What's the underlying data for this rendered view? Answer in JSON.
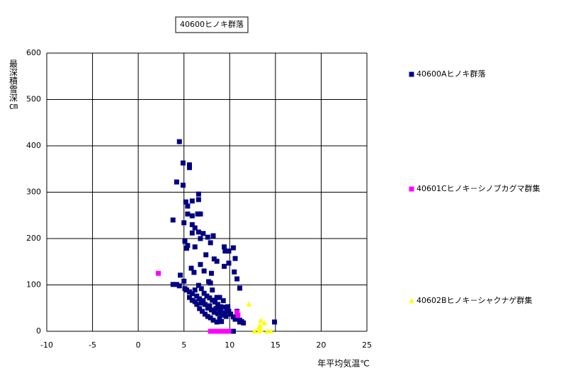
{
  "chart_data": {
    "type": "scatter",
    "title": "40600ヒノキ群落",
    "xlabel": "年平均気温℃",
    "ylabel": "最深積雪深㎝",
    "xlim": [
      -10,
      25
    ],
    "xticks": [
      -10,
      -5,
      0,
      5,
      10,
      15,
      20,
      25
    ],
    "ylim": [
      0,
      600
    ],
    "yticks": [
      0,
      100,
      200,
      300,
      400,
      500,
      600
    ],
    "grid": true,
    "legend": "right",
    "series": [
      {
        "name": "40600Aヒノキ群落",
        "color": "#000080",
        "marker": "square",
        "x": [
          4.5,
          4.9,
          5.6,
          5.6,
          4.2,
          4.9,
          6.6,
          6.6,
          5.2,
          5.9,
          5.4,
          3.8,
          5.4,
          5.9,
          6.5,
          6.8,
          5.0,
          5.9,
          6.2,
          5.9,
          6.6,
          7.1,
          7.6,
          8.2,
          5.1,
          6.8,
          5.4,
          7.9,
          5.3,
          6.2,
          7.4,
          8.3,
          8.6,
          9.4,
          9.5,
          9.9,
          10.4,
          10.6,
          9.4,
          9.9,
          6.8,
          7.2,
          5.8,
          6.1,
          10.5,
          10.8,
          8.0,
          7.7,
          4.6,
          3.8,
          4.2,
          4.5,
          5.0,
          11.1,
          5.1,
          5.3,
          5.6,
          5.9,
          6.2,
          6.4,
          6.7,
          6.9,
          7.1,
          7.3,
          7.6,
          7.8,
          8.0,
          8.3,
          8.5,
          8.7,
          9.0,
          9.2,
          9.4,
          9.6,
          9.9,
          10.1,
          10.4,
          10.6,
          10.8,
          11.1,
          11.3,
          11.5,
          7.2,
          7.5,
          7.8,
          8.1,
          8.4,
          8.7,
          9.0,
          9.4,
          9.7,
          6.6,
          6.9,
          6.4,
          6.7,
          7.0,
          7.3,
          7.6,
          7.9,
          8.2,
          8.6,
          8.9,
          9.1,
          5.9,
          5.6,
          6.2,
          8.9,
          8.6,
          8.1,
          7.9,
          9.3,
          9.8,
          14.9,
          10.4,
          10.1,
          11.1,
          10.8
        ],
        "values": [
          409,
          363,
          359,
          353,
          322,
          315,
          296,
          284,
          279,
          281,
          270,
          240,
          253,
          249,
          253,
          253,
          234,
          230,
          223,
          212,
          214,
          211,
          203,
          206,
          194,
          200,
          185,
          191,
          179,
          182,
          165,
          156,
          151,
          182,
          173,
          173,
          180,
          157,
          140,
          147,
          144,
          130,
          136,
          127,
          128,
          113,
          125,
          107,
          121,
          101,
          101,
          98,
          108,
          93,
          92,
          89,
          85,
          81,
          89,
          76,
          70,
          61,
          66,
          58,
          50,
          55,
          46,
          41,
          49,
          38,
          43,
          35,
          40,
          32,
          43,
          37,
          31,
          26,
          29,
          24,
          21,
          18,
          82,
          76,
          72,
          67,
          63,
          58,
          53,
          52,
          49,
          99,
          92,
          58,
          49,
          43,
          37,
          32,
          29,
          24,
          20,
          27,
          21,
          67,
          73,
          64,
          73,
          73,
          89,
          104,
          66,
          53,
          20,
          0,
          0,
          20,
          43
        ]
      },
      {
        "name": "40601Cヒノキ－シノブカグマ群集",
        "color": "#ff00ff",
        "marker": "square",
        "x": [
          2.2,
          10.8,
          10.9,
          7.9,
          8.1,
          8.3,
          8.5,
          8.7,
          8.9,
          9.1,
          9.3,
          9.5,
          9.7,
          9.9
        ],
        "values": [
          125,
          41,
          34,
          0,
          0,
          0,
          0,
          0,
          0,
          0,
          0,
          0,
          0,
          0
        ]
      },
      {
        "name": "40602Bヒノキ－シャクナゲ群集",
        "color": "#ffff00",
        "marker": "triangle",
        "x": [
          12.1,
          13.4,
          13.8,
          13.3,
          13.2,
          12.7,
          14.1,
          13.2,
          14.5,
          13.4
        ],
        "values": [
          58,
          23,
          18,
          12,
          8,
          0,
          0,
          0,
          0,
          3
        ]
      }
    ]
  }
}
